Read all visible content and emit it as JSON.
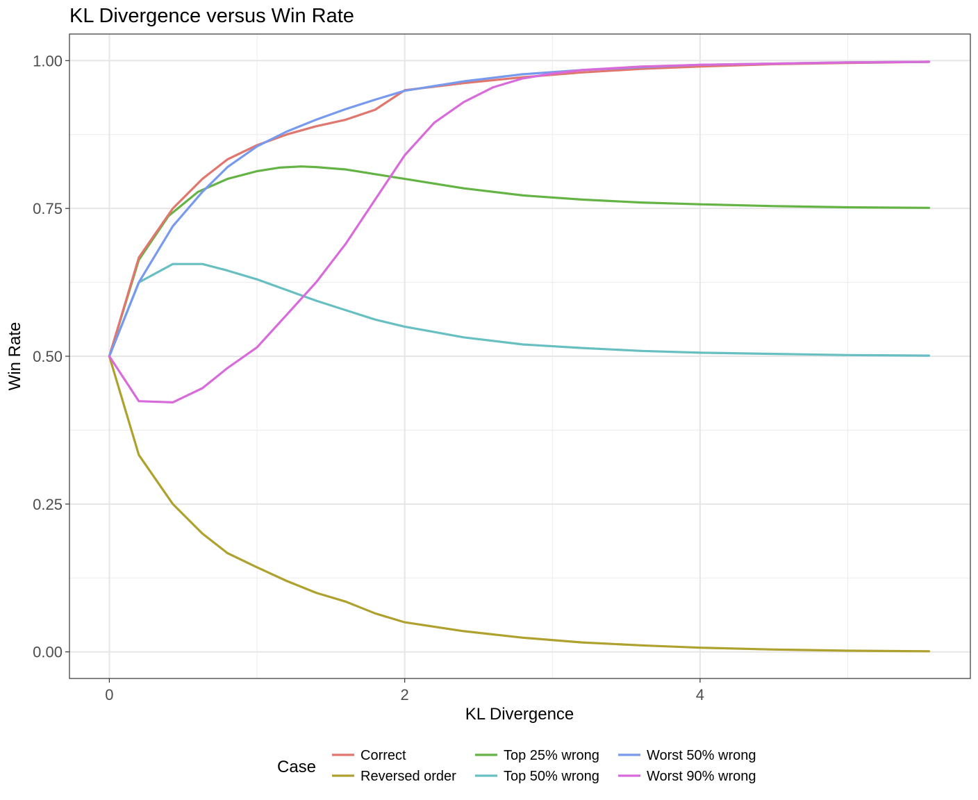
{
  "chart_data": {
    "type": "line",
    "title": "KL Divergence versus Win Rate",
    "xlabel": "KL Divergence",
    "ylabel": "Win Rate",
    "xlim": [
      -0.27,
      5.83
    ],
    "ylim": [
      -0.045,
      1.045
    ],
    "x_ticks": [
      0,
      2,
      4
    ],
    "x_tick_labels": [
      "0",
      "2",
      "4"
    ],
    "y_ticks": [
      0,
      0.25,
      0.5,
      0.75,
      1
    ],
    "y_tick_labels": [
      "0.00",
      "0.25",
      "0.50",
      "0.75",
      "1.00"
    ],
    "grid": true,
    "legend": {
      "title": "Case",
      "position": "bottom"
    },
    "series": [
      {
        "name": "Correct",
        "color": "#E0766D",
        "x": [
          0,
          0.2,
          0.43,
          0.63,
          0.8,
          1.0,
          1.2,
          1.4,
          1.6,
          1.8,
          2.0,
          2.4,
          2.8,
          3.2,
          3.6,
          4.0,
          4.5,
          5.0,
          5.55
        ],
        "y": [
          0.5,
          0.667,
          0.75,
          0.8,
          0.833,
          0.857,
          0.875,
          0.889,
          0.9,
          0.917,
          0.95,
          0.962,
          0.972,
          0.98,
          0.986,
          0.99,
          0.994,
          0.996,
          0.998
        ]
      },
      {
        "name": "Reversed order",
        "color": "#AEA12E",
        "x": [
          0,
          0.2,
          0.43,
          0.63,
          0.8,
          1.0,
          1.2,
          1.4,
          1.6,
          1.8,
          2.0,
          2.4,
          2.8,
          3.2,
          3.6,
          4.0,
          4.5,
          5.0,
          5.55
        ],
        "y": [
          0.5,
          0.333,
          0.25,
          0.2,
          0.167,
          0.143,
          0.12,
          0.1,
          0.085,
          0.065,
          0.05,
          0.035,
          0.024,
          0.016,
          0.011,
          0.007,
          0.004,
          0.002,
          0.001
        ]
      },
      {
        "name": "Top 25% wrong",
        "color": "#64B445",
        "x": [
          0,
          0.2,
          0.4,
          0.6,
          0.8,
          1.0,
          1.15,
          1.3,
          1.4,
          1.6,
          1.8,
          2.0,
          2.4,
          2.8,
          3.2,
          3.6,
          4.0,
          4.5,
          5.0,
          5.55
        ],
        "y": [
          0.5,
          0.663,
          0.737,
          0.778,
          0.8,
          0.813,
          0.819,
          0.821,
          0.82,
          0.816,
          0.808,
          0.8,
          0.784,
          0.772,
          0.765,
          0.76,
          0.757,
          0.754,
          0.752,
          0.751
        ]
      },
      {
        "name": "Top 50% wrong",
        "color": "#67BFC1",
        "x": [
          0,
          0.2,
          0.43,
          0.63,
          0.8,
          1.0,
          1.2,
          1.4,
          1.6,
          1.8,
          2.0,
          2.4,
          2.8,
          3.2,
          3.6,
          4.0,
          4.5,
          5.0,
          5.55
        ],
        "y": [
          0.5,
          0.625,
          0.656,
          0.656,
          0.645,
          0.63,
          0.612,
          0.594,
          0.578,
          0.562,
          0.55,
          0.532,
          0.52,
          0.514,
          0.509,
          0.506,
          0.504,
          0.502,
          0.501
        ]
      },
      {
        "name": "Worst 50% wrong",
        "color": "#779AEF",
        "x": [
          0,
          0.2,
          0.43,
          0.63,
          0.8,
          1.0,
          1.2,
          1.4,
          1.6,
          1.8,
          2.0,
          2.4,
          2.8,
          3.2,
          3.6,
          4.0,
          4.5,
          5.0,
          5.55
        ],
        "y": [
          0.5,
          0.625,
          0.72,
          0.778,
          0.82,
          0.855,
          0.88,
          0.9,
          0.918,
          0.934,
          0.949,
          0.965,
          0.977,
          0.984,
          0.989,
          0.993,
          0.995,
          0.997,
          0.998
        ]
      },
      {
        "name": "Worst 90% wrong",
        "color": "#D86BD9",
        "x": [
          0,
          0.2,
          0.43,
          0.63,
          0.8,
          1.0,
          1.2,
          1.4,
          1.6,
          1.8,
          2.0,
          2.2,
          2.4,
          2.6,
          2.8,
          3.0,
          3.2,
          3.6,
          4.0,
          4.5,
          5.0,
          5.55
        ],
        "y": [
          0.5,
          0.424,
          0.422,
          0.446,
          0.48,
          0.515,
          0.57,
          0.625,
          0.69,
          0.765,
          0.84,
          0.895,
          0.93,
          0.955,
          0.97,
          0.978,
          0.984,
          0.99,
          0.993,
          0.995,
          0.997,
          0.998
        ]
      }
    ]
  }
}
